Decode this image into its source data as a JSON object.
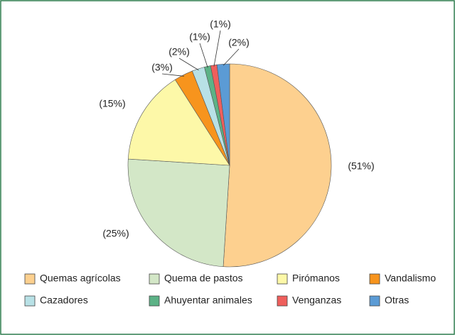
{
  "chart_data": {
    "type": "pie",
    "categories": [
      "Quemas agrícolas",
      "Quema de pastos",
      "Pirómanos",
      "Vandalismo",
      "Cazadores",
      "Ahuyentar animales",
      "Venganzas",
      "Otras"
    ],
    "values": [
      51,
      25,
      15,
      3,
      2,
      1,
      1,
      2
    ],
    "value_labels": [
      "(51%)",
      "(25%)",
      "(15%)",
      "(3%)",
      "(2%)",
      "(1%)",
      "(1%)",
      "(2%)"
    ],
    "colors": [
      "#fdd08f",
      "#d3e7c7",
      "#fdf8a8",
      "#f7941d",
      "#b8e1e6",
      "#5cb286",
      "#ef5f5c",
      "#5b9bd5"
    ],
    "legend": "bottom"
  }
}
